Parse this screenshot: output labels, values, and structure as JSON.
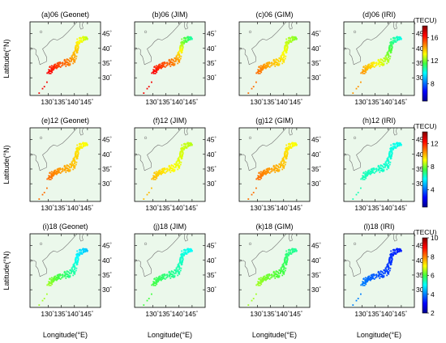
{
  "colors": {
    "background": "#ebf8eb",
    "frame": "#000000",
    "coast": "#707070"
  },
  "rows": [
    {
      "unit": "(TECU)",
      "cb_ticks": [
        "16",
        "12",
        "8"
      ],
      "cb_min": 5,
      "cb_max": 18,
      "cb_tick_values": [
        16,
        12,
        8
      ],
      "panels": [
        {
          "title": "(a)06 (Geonet)",
          "tec": [
            16.5,
            14.5,
            12.5
          ]
        },
        {
          "title": "(b)06 (JIM)",
          "tec": [
            16.5,
            14.5,
            10.5
          ]
        },
        {
          "title": "(c)06 (GIM)",
          "tec": [
            15.0,
            13.5,
            12.0
          ]
        },
        {
          "title": "(d)06 (IRI)",
          "tec": [
            14.5,
            12.5,
            10.0
          ]
        }
      ]
    },
    {
      "unit": "(TECU)",
      "cb_ticks": [
        "12",
        "8",
        "4"
      ],
      "cb_min": 1,
      "cb_max": 14,
      "cb_tick_values": [
        12,
        8,
        4
      ],
      "panels": [
        {
          "title": "(e)12 (Geonet)",
          "tec": [
            11.0,
            10.0,
            9.0
          ]
        },
        {
          "title": "(f)12 (JIM)",
          "tec": [
            10.0,
            9.0,
            8.5
          ]
        },
        {
          "title": "(g)12 (GIM)",
          "tec": [
            11.0,
            10.0,
            9.0
          ]
        },
        {
          "title": "(h)12 (IRI)",
          "tec": [
            6.5,
            6.3,
            6.0
          ]
        }
      ]
    },
    {
      "unit": "(TECU)",
      "cb_ticks": [
        "10",
        "8",
        "6",
        "4",
        "2"
      ],
      "cb_min": 2,
      "cb_max": 10,
      "cb_tick_values": [
        10,
        8,
        6,
        4,
        2
      ],
      "panels": [
        {
          "title": "(i)18 (Geonet)",
          "tec": [
            6.5,
            5.5,
            4.5
          ]
        },
        {
          "title": "(j)18 (JIM)",
          "tec": [
            6.0,
            5.5,
            5.0
          ]
        },
        {
          "title": "(k)18 (GIM)",
          "tec": [
            6.5,
            6.0,
            5.5
          ]
        },
        {
          "title": "(l)18 (IRI)",
          "tec": [
            4.0,
            3.5,
            3.2
          ]
        }
      ]
    }
  ],
  "lat_ticks": [
    "45",
    "40",
    "35",
    "30"
  ],
  "lat_values": [
    45,
    40,
    35,
    30
  ],
  "lon_ticks": [
    "130",
    "135",
    "140",
    "145"
  ],
  "lon_values": [
    130,
    135,
    140,
    145
  ],
  "degree_sign": "°",
  "ylabel": "Latitude(°N)",
  "xlabel": "Longitude(°E)"
}
